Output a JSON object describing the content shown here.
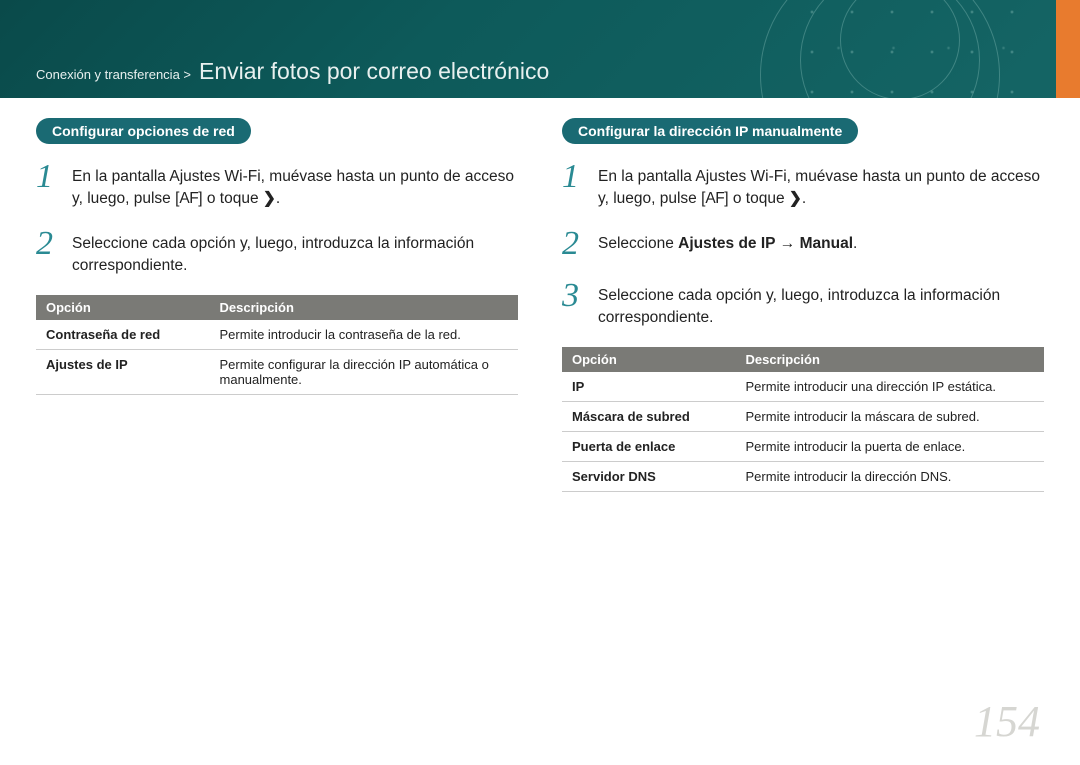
{
  "header": {
    "breadcrumb_pre": "Conexión y transferencia >",
    "title": "Enviar fotos por correo electrónico",
    "bg_gradient_from": "#0a4a4a",
    "bg_gradient_to": "#156565",
    "accent_color": "#e87b2e"
  },
  "left": {
    "pill": "Configurar opciones de red",
    "steps": [
      {
        "num": "1",
        "text_before": "En la pantalla Ajustes Wi-Fi, muévase hasta un punto de acceso y, luego, pulse [",
        "af": "AF",
        "text_mid": "] o toque ",
        "chevron": "❯",
        "text_after": "."
      },
      {
        "num": "2",
        "text_before": "Seleccione cada opción y, luego, introduzca la información correspondiente."
      }
    ],
    "table": {
      "headers": [
        "Opción",
        "Descripción"
      ],
      "rows": [
        [
          "Contraseña de red",
          "Permite introducir la contraseña de la red."
        ],
        [
          "Ajustes de IP",
          "Permite configurar la dirección IP automática o manualmente."
        ]
      ]
    }
  },
  "right": {
    "pill": "Configurar la dirección IP manualmente",
    "steps": [
      {
        "num": "1",
        "text_before": "En la pantalla Ajustes Wi-Fi, muévase hasta un punto de acceso y, luego, pulse [",
        "af": "AF",
        "text_mid": "] o toque ",
        "chevron": "❯",
        "text_after": "."
      },
      {
        "num": "2",
        "text_before": "Seleccione ",
        "bold1": "Ajustes de IP",
        "arrow": " → ",
        "bold2": "Manual",
        "text_after": "."
      },
      {
        "num": "3",
        "text_before": "Seleccione cada opción y, luego, introduzca la información correspondiente."
      }
    ],
    "table": {
      "headers": [
        "Opción",
        "Descripción"
      ],
      "rows": [
        [
          "IP",
          "Permite introducir una dirección IP estática."
        ],
        [
          "Máscara de subred",
          "Permite introducir la máscara de subred."
        ],
        [
          "Puerta de enlace",
          "Permite introducir la puerta de enlace."
        ],
        [
          "Servidor DNS",
          "Permite introducir la dirección DNS."
        ]
      ]
    }
  },
  "page_number": "154",
  "colors": {
    "pill_bg": "#1a6a73",
    "step_num": "#2a8a93",
    "th_bg": "#7a7a76",
    "page_num": "#d6d6d2",
    "text": "#222222"
  },
  "typography": {
    "title_fontsize": 23,
    "body_fontsize": 15.5,
    "table_fontsize": 13,
    "step_num_fontsize": 34,
    "page_num_fontsize": 44
  }
}
